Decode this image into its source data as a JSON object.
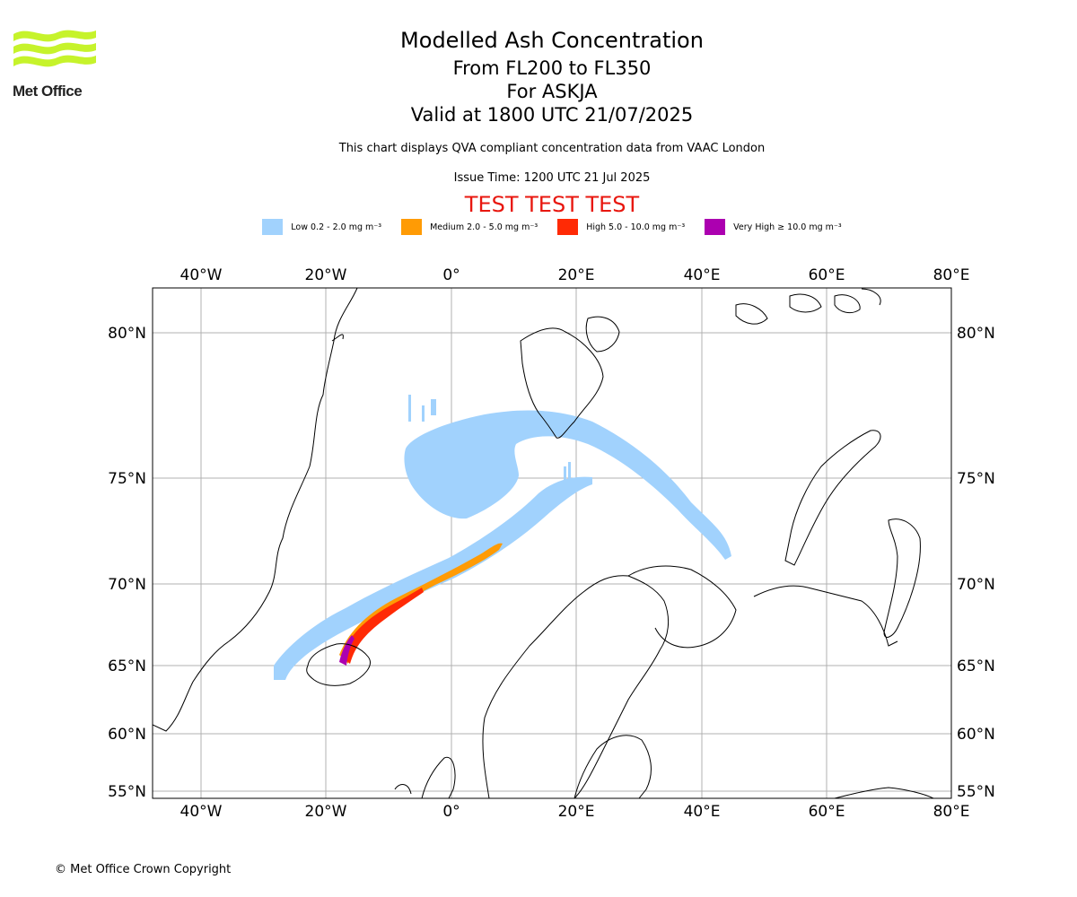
{
  "header": {
    "logo_text": "Met Office",
    "title": "Modelled Ash Concentration",
    "subtitle_levels": "From FL200 to FL350",
    "subtitle_volcano": "For ASKJA",
    "valid_time": "Valid at 1800 UTC 21/07/2025",
    "note": "This chart displays QVA compliant concentration data from VAAC London",
    "issue_time": "Issue Time: 1200 UTC 21 Jul 2025",
    "test_banner": "TEST TEST TEST"
  },
  "legend": [
    {
      "label": "Low 0.2 - 2.0 mg m⁻³",
      "color": "#a1d2fd"
    },
    {
      "label": "Medium 2.0 - 5.0 mg m⁻³",
      "color": "#ff9b05"
    },
    {
      "label": "High 5.0 - 10.0 mg m⁻³",
      "color": "#ff2a05"
    },
    {
      "label": "Very High ≥ 10.0 mg m⁻³",
      "color": "#ac00b0"
    }
  ],
  "map": {
    "lon_ticks": [
      "40°W",
      "20°W",
      "0°",
      "20°E",
      "40°E",
      "60°E",
      "80°E"
    ],
    "lat_ticks": [
      "80°N",
      "75°N",
      "70°N",
      "65°N",
      "60°N",
      "55°N"
    ],
    "coastline_color": "#000000",
    "grid_color": "#b0b0b0"
  },
  "footer": {
    "copyright": "© Met Office Crown Copyright"
  }
}
